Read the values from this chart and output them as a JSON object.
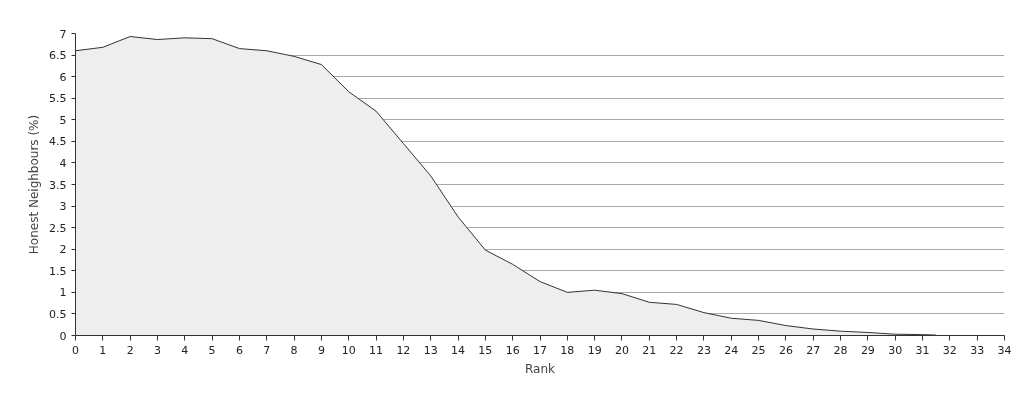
{
  "chart_data": {
    "type": "area",
    "xlabel": "Rank",
    "ylabel": "Honest Neighbours (%)",
    "x": [
      0,
      1,
      2,
      3,
      4,
      5,
      6,
      7,
      8,
      9,
      10,
      11,
      12,
      13,
      14,
      15,
      16,
      17,
      18,
      19,
      20,
      21,
      22,
      23,
      24,
      25,
      26,
      27,
      28,
      29,
      30,
      31,
      31.5
    ],
    "series": [
      {
        "color": "#333333",
        "values": [
          6.6,
          6.68,
          6.93,
          6.86,
          6.9,
          6.88,
          6.65,
          6.6,
          6.47,
          6.28,
          5.65,
          5.2,
          4.45,
          3.7,
          2.75,
          1.98,
          1.65,
          1.25,
          1.0,
          1.05,
          0.97,
          0.77,
          0.72,
          0.53,
          0.4,
          0.35,
          0.23,
          0.15,
          0.1,
          0.07,
          0.03,
          0.02,
          0.01
        ]
      }
    ],
    "xlim": [
      0,
      34
    ],
    "xticks": [
      0,
      1,
      2,
      3,
      4,
      5,
      6,
      7,
      8,
      9,
      10,
      11,
      12,
      13,
      14,
      15,
      16,
      17,
      18,
      19,
      20,
      21,
      22,
      23,
      24,
      25,
      26,
      27,
      28,
      29,
      30,
      31,
      32,
      33,
      34
    ],
    "ylim": [
      0,
      7
    ],
    "yticks": [
      0,
      0.5,
      1,
      1.5,
      2,
      2.5,
      3,
      3.5,
      4,
      4.5,
      5,
      5.5,
      6,
      6.5,
      7
    ],
    "grid": "y"
  }
}
